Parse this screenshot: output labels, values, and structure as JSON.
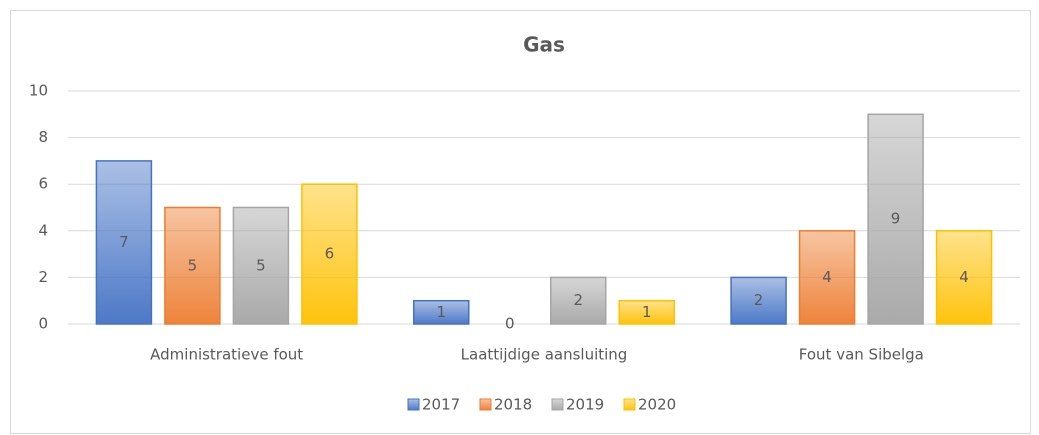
{
  "chart_data": {
    "type": "bar",
    "title": "Gas",
    "categories": [
      "Administratieve fout",
      "Laattijdige aansluiting",
      "Fout van Sibelga"
    ],
    "series": [
      {
        "name": "2017",
        "color": "#4472c4",
        "values": [
          7,
          1,
          2
        ]
      },
      {
        "name": "2018",
        "color": "#ed7d31",
        "values": [
          5,
          0,
          4
        ]
      },
      {
        "name": "2019",
        "color": "#a5a5a5",
        "values": [
          5,
          2,
          9
        ]
      },
      {
        "name": "2020",
        "color": "#ffc000",
        "values": [
          6,
          1,
          4
        ]
      }
    ],
    "ylim": [
      0,
      10
    ],
    "yticks": [
      0,
      2,
      4,
      6,
      8,
      10
    ],
    "grid": true,
    "legend": "bottom",
    "data_labels": true
  }
}
